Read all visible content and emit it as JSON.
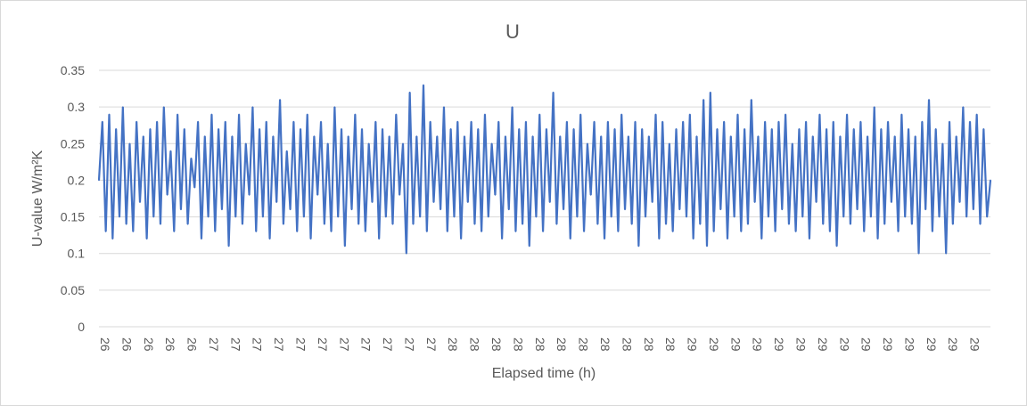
{
  "chart_data": {
    "type": "line",
    "title": "U",
    "xlabel": "Elapsed time (h)",
    "ylabel": "U-value W/m²K",
    "ylim": [
      0,
      0.35
    ],
    "yticks": [
      0,
      0.05,
      0.1,
      0.15,
      0.2,
      0.25,
      0.3,
      0.35
    ],
    "ytick_labels": [
      "0",
      "0.05",
      "0.1",
      "0.15",
      "0.2",
      "0.25",
      "0.3",
      "0.35"
    ],
    "xtick_labels": [
      "26",
      "26",
      "26",
      "26",
      "26",
      "27",
      "27",
      "27",
      "27",
      "27",
      "27",
      "27",
      "27",
      "27",
      "27",
      "27",
      "28",
      "28",
      "28",
      "28",
      "28",
      "28",
      "28",
      "28",
      "28",
      "28",
      "28",
      "29",
      "29",
      "29",
      "29",
      "29",
      "29",
      "29",
      "29",
      "29",
      "29",
      "29",
      "29",
      "29",
      "29"
    ],
    "grid": true,
    "legend": false,
    "series": [
      {
        "color": "#4472c4",
        "values": [
          0.2,
          0.28,
          0.13,
          0.29,
          0.12,
          0.27,
          0.15,
          0.3,
          0.14,
          0.25,
          0.13,
          0.28,
          0.17,
          0.26,
          0.12,
          0.27,
          0.15,
          0.28,
          0.14,
          0.3,
          0.18,
          0.24,
          0.13,
          0.29,
          0.16,
          0.27,
          0.14,
          0.23,
          0.19,
          0.28,
          0.12,
          0.26,
          0.15,
          0.29,
          0.13,
          0.27,
          0.16,
          0.28,
          0.11,
          0.26,
          0.15,
          0.29,
          0.14,
          0.25,
          0.18,
          0.3,
          0.13,
          0.27,
          0.15,
          0.28,
          0.12,
          0.26,
          0.17,
          0.31,
          0.14,
          0.24,
          0.16,
          0.28,
          0.13,
          0.27,
          0.15,
          0.29,
          0.12,
          0.26,
          0.18,
          0.28,
          0.14,
          0.25,
          0.13,
          0.3,
          0.15,
          0.27,
          0.11,
          0.26,
          0.16,
          0.29,
          0.14,
          0.27,
          0.13,
          0.25,
          0.17,
          0.28,
          0.12,
          0.27,
          0.15,
          0.26,
          0.14,
          0.29,
          0.18,
          0.25,
          0.1,
          0.32,
          0.14,
          0.26,
          0.15,
          0.33,
          0.13,
          0.28,
          0.17,
          0.26,
          0.16,
          0.3,
          0.13,
          0.27,
          0.15,
          0.28,
          0.12,
          0.26,
          0.17,
          0.28,
          0.14,
          0.27,
          0.13,
          0.29,
          0.15,
          0.25,
          0.18,
          0.28,
          0.12,
          0.26,
          0.16,
          0.3,
          0.13,
          0.27,
          0.14,
          0.28,
          0.11,
          0.26,
          0.15,
          0.29,
          0.13,
          0.27,
          0.17,
          0.32,
          0.14,
          0.26,
          0.16,
          0.28,
          0.12,
          0.27,
          0.15,
          0.29,
          0.13,
          0.25,
          0.18,
          0.28,
          0.14,
          0.26,
          0.12,
          0.28,
          0.15,
          0.27,
          0.13,
          0.29,
          0.16,
          0.26,
          0.14,
          0.28,
          0.11,
          0.27,
          0.15,
          0.26,
          0.17,
          0.29,
          0.12,
          0.28,
          0.14,
          0.25,
          0.13,
          0.27,
          0.16,
          0.28,
          0.15,
          0.29,
          0.12,
          0.26,
          0.14,
          0.31,
          0.11,
          0.32,
          0.13,
          0.27,
          0.16,
          0.28,
          0.12,
          0.26,
          0.15,
          0.29,
          0.13,
          0.27,
          0.14,
          0.31,
          0.17,
          0.26,
          0.12,
          0.28,
          0.15,
          0.27,
          0.13,
          0.28,
          0.16,
          0.29,
          0.14,
          0.25,
          0.13,
          0.27,
          0.15,
          0.28,
          0.12,
          0.26,
          0.17,
          0.29,
          0.14,
          0.27,
          0.13,
          0.28,
          0.11,
          0.26,
          0.15,
          0.29,
          0.14,
          0.27,
          0.16,
          0.28,
          0.13,
          0.26,
          0.15,
          0.3,
          0.12,
          0.27,
          0.14,
          0.28,
          0.17,
          0.26,
          0.13,
          0.29,
          0.15,
          0.27,
          0.14,
          0.26,
          0.1,
          0.28,
          0.16,
          0.31,
          0.13,
          0.27,
          0.15,
          0.25,
          0.1,
          0.28,
          0.14,
          0.26,
          0.17,
          0.3,
          0.15,
          0.28,
          0.16,
          0.29,
          0.14,
          0.27,
          0.15,
          0.2
        ]
      }
    ]
  }
}
